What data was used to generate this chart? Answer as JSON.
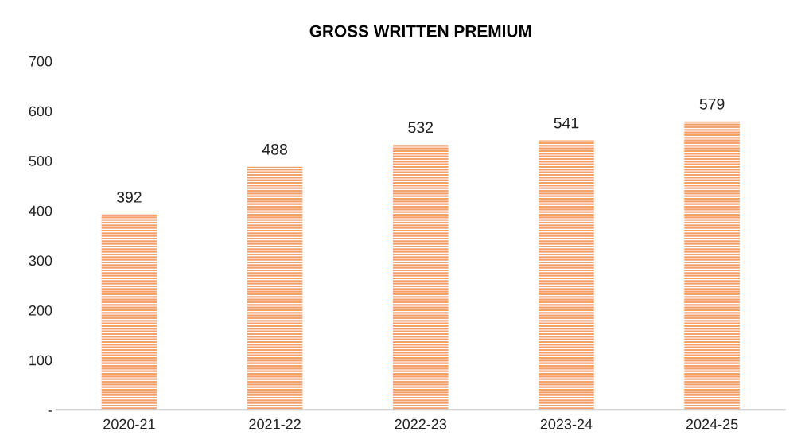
{
  "chart_data": {
    "type": "bar",
    "title": "GROSS WRITTEN PREMIUM",
    "categories": [
      "2020-21",
      "2021-22",
      "2022-23",
      "2023-24",
      "2024-25"
    ],
    "values": [
      392,
      488,
      532,
      541,
      579
    ],
    "color": "#f4a06c",
    "ylim": [
      0,
      700
    ],
    "yticks": [
      {
        "value": 0,
        "label": "-"
      },
      100,
      200,
      300,
      400,
      500,
      600,
      700
    ],
    "data_labels": true,
    "grid": false,
    "legend": false
  }
}
